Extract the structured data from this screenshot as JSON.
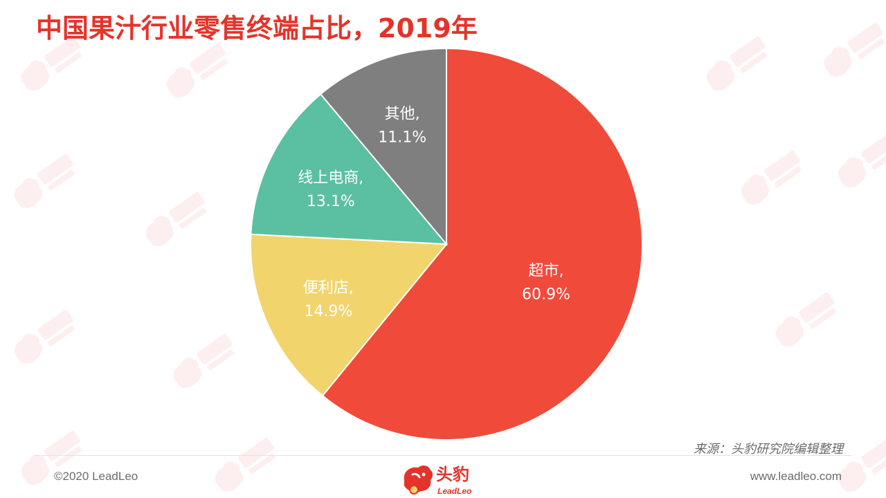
{
  "page": {
    "title": "中国果汁行业零售终端占比，2019年",
    "source": "来源：头豹研究院编辑整理",
    "copyright": "©2020 LeadLeo",
    "website": "www.leadleo.com"
  },
  "logo": {
    "name_cn": "头豹",
    "name_en": "LeadLeo",
    "icon": "leopard-head-icon",
    "color": "#e5332a"
  },
  "chart_data": {
    "type": "pie",
    "start_angle_deg": 0,
    "direction": "clockwise",
    "slices": [
      {
        "label": "超市",
        "value": 60.9,
        "display": "超市,",
        "pct": "60.9%",
        "color": "#f04a3b"
      },
      {
        "label": "便利店",
        "value": 14.9,
        "display": "便利店,",
        "pct": "14.9%",
        "color": "#f2d46d"
      },
      {
        "label": "线上电商",
        "value": 13.1,
        "display": "线上电商,",
        "pct": "13.1%",
        "color": "#5bbfa2"
      },
      {
        "label": "其他",
        "value": 11.1,
        "display": "其他,",
        "pct": "11.1%",
        "color": "#7f7f7f"
      }
    ]
  }
}
